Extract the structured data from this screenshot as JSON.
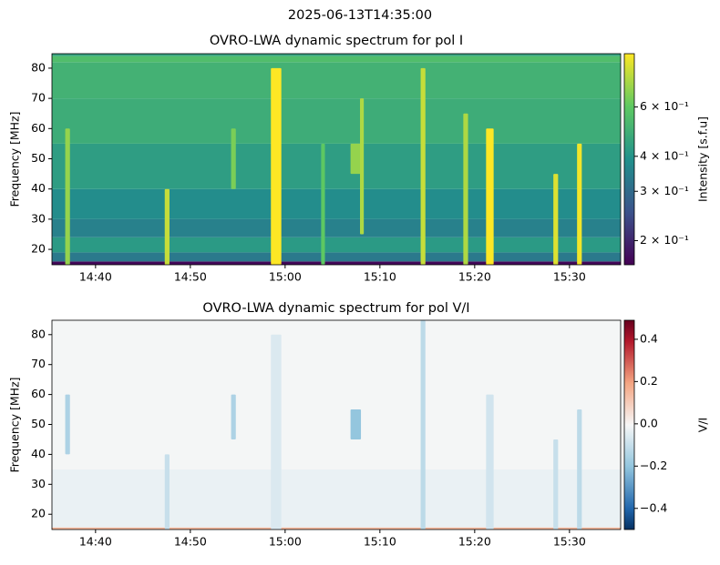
{
  "title": "2025-06-13T14:35:00",
  "chart_data": [
    {
      "type": "heatmap",
      "title": "OVRO-LWA dynamic spectrum for pol I",
      "ylabel": "Frequency [MHz]",
      "xlim": [
        875.4,
        935.4
      ],
      "xticks": [
        {
          "value": 880,
          "label": "14:40"
        },
        {
          "value": 890,
          "label": "14:50"
        },
        {
          "value": 900,
          "label": "15:00"
        },
        {
          "value": 910,
          "label": "15:10"
        },
        {
          "value": 920,
          "label": "15:20"
        },
        {
          "value": 930,
          "label": "15:30"
        }
      ],
      "ylim": [
        14.9,
        84.8
      ],
      "yticks": [
        20,
        30,
        40,
        50,
        60,
        70,
        80
      ],
      "colorbar": {
        "label": "Intensity [s.f.u]",
        "scale": "log",
        "colormap": "viridis",
        "lim": [
          0.164,
          0.93
        ],
        "ticks": [
          {
            "value": 0.2,
            "label": "2 × 10⁻¹"
          },
          {
            "value": 0.3,
            "label": "3 × 10⁻¹"
          },
          {
            "value": 0.4,
            "label": "4 × 10⁻¹"
          },
          {
            "value": 0.6,
            "label": "6 × 10⁻¹"
          }
        ]
      },
      "freq_bins": [
        14.9,
        16,
        19,
        24,
        30,
        40,
        55,
        70,
        82,
        84,
        84.8
      ],
      "background": [
        0.17,
        0.33,
        0.42,
        0.35,
        0.38,
        0.43,
        0.48,
        0.5,
        0.55,
        0.45
      ],
      "bursts": [
        {
          "t": [
            876.8,
            877.3
          ],
          "f": [
            14.9,
            60
          ],
          "value": 0.7
        },
        {
          "t": [
            887.3,
            887.8
          ],
          "f": [
            14.9,
            40
          ],
          "value": 0.8
        },
        {
          "t": [
            894.3,
            894.8
          ],
          "f": [
            40,
            60
          ],
          "value": 0.65
        },
        {
          "t": [
            898.5,
            899.6
          ],
          "f": [
            14.9,
            80
          ],
          "value": 0.93
        },
        {
          "t": [
            903.8,
            904.2
          ],
          "f": [
            14.9,
            55
          ],
          "value": 0.6
        },
        {
          "t": [
            906.9,
            908.0
          ],
          "f": [
            45,
            55
          ],
          "value": 0.7
        },
        {
          "t": [
            907.9,
            908.3
          ],
          "f": [
            25,
            70
          ],
          "value": 0.75
        },
        {
          "t": [
            914.3,
            914.8
          ],
          "f": [
            14.9,
            80
          ],
          "value": 0.8
        },
        {
          "t": [
            918.8,
            919.3
          ],
          "f": [
            14.9,
            65
          ],
          "value": 0.75
        },
        {
          "t": [
            921.2,
            922.0
          ],
          "f": [
            14.9,
            60
          ],
          "value": 0.93
        },
        {
          "t": [
            928.3,
            928.8
          ],
          "f": [
            14.9,
            45
          ],
          "value": 0.85
        },
        {
          "t": [
            930.8,
            931.3
          ],
          "f": [
            14.9,
            55
          ],
          "value": 0.9
        }
      ]
    },
    {
      "type": "heatmap",
      "title": "OVRO-LWA dynamic spectrum for pol V/I",
      "ylabel": "Frequency [MHz]",
      "xlim": [
        875.4,
        935.4
      ],
      "xticks": [
        {
          "value": 880,
          "label": "14:40"
        },
        {
          "value": 890,
          "label": "14:50"
        },
        {
          "value": 900,
          "label": "15:00"
        },
        {
          "value": 910,
          "label": "15:10"
        },
        {
          "value": 920,
          "label": "15:20"
        },
        {
          "value": 930,
          "label": "15:30"
        }
      ],
      "ylim": [
        14.9,
        84.8
      ],
      "yticks": [
        20,
        30,
        40,
        50,
        60,
        70,
        80
      ],
      "colorbar": {
        "label": "V/I",
        "scale": "linear",
        "colormap": "RdBu_r",
        "lim": [
          -0.5,
          0.49
        ],
        "ticks": [
          {
            "value": -0.4,
            "label": "−0.4"
          },
          {
            "value": -0.2,
            "label": "−0.2"
          },
          {
            "value": 0,
            "label": "0.0"
          },
          0.2,
          0.4
        ]
      },
      "freq_bins": [
        14.9,
        15.6,
        35,
        84.8
      ],
      "background": [
        0.15,
        -0.03,
        -0.01
      ],
      "bursts": [
        {
          "t": [
            876.8,
            877.3
          ],
          "f": [
            40,
            60
          ],
          "value": -0.15
        },
        {
          "t": [
            887.3,
            887.8
          ],
          "f": [
            14.9,
            40
          ],
          "value": -0.1
        },
        {
          "t": [
            894.3,
            894.8
          ],
          "f": [
            45,
            60
          ],
          "value": -0.15
        },
        {
          "t": [
            898.5,
            899.6
          ],
          "f": [
            14.9,
            80
          ],
          "value": -0.06
        },
        {
          "t": [
            906.9,
            908.0
          ],
          "f": [
            45,
            55
          ],
          "value": -0.2
        },
        {
          "t": [
            914.3,
            914.8
          ],
          "f": [
            14.9,
            84.8
          ],
          "value": -0.12
        },
        {
          "t": [
            921.2,
            922.0
          ],
          "f": [
            14.9,
            60
          ],
          "value": -0.08
        },
        {
          "t": [
            928.3,
            928.8
          ],
          "f": [
            14.9,
            45
          ],
          "value": -0.1
        },
        {
          "t": [
            930.8,
            931.3
          ],
          "f": [
            14.9,
            55
          ],
          "value": -0.12
        }
      ]
    }
  ]
}
